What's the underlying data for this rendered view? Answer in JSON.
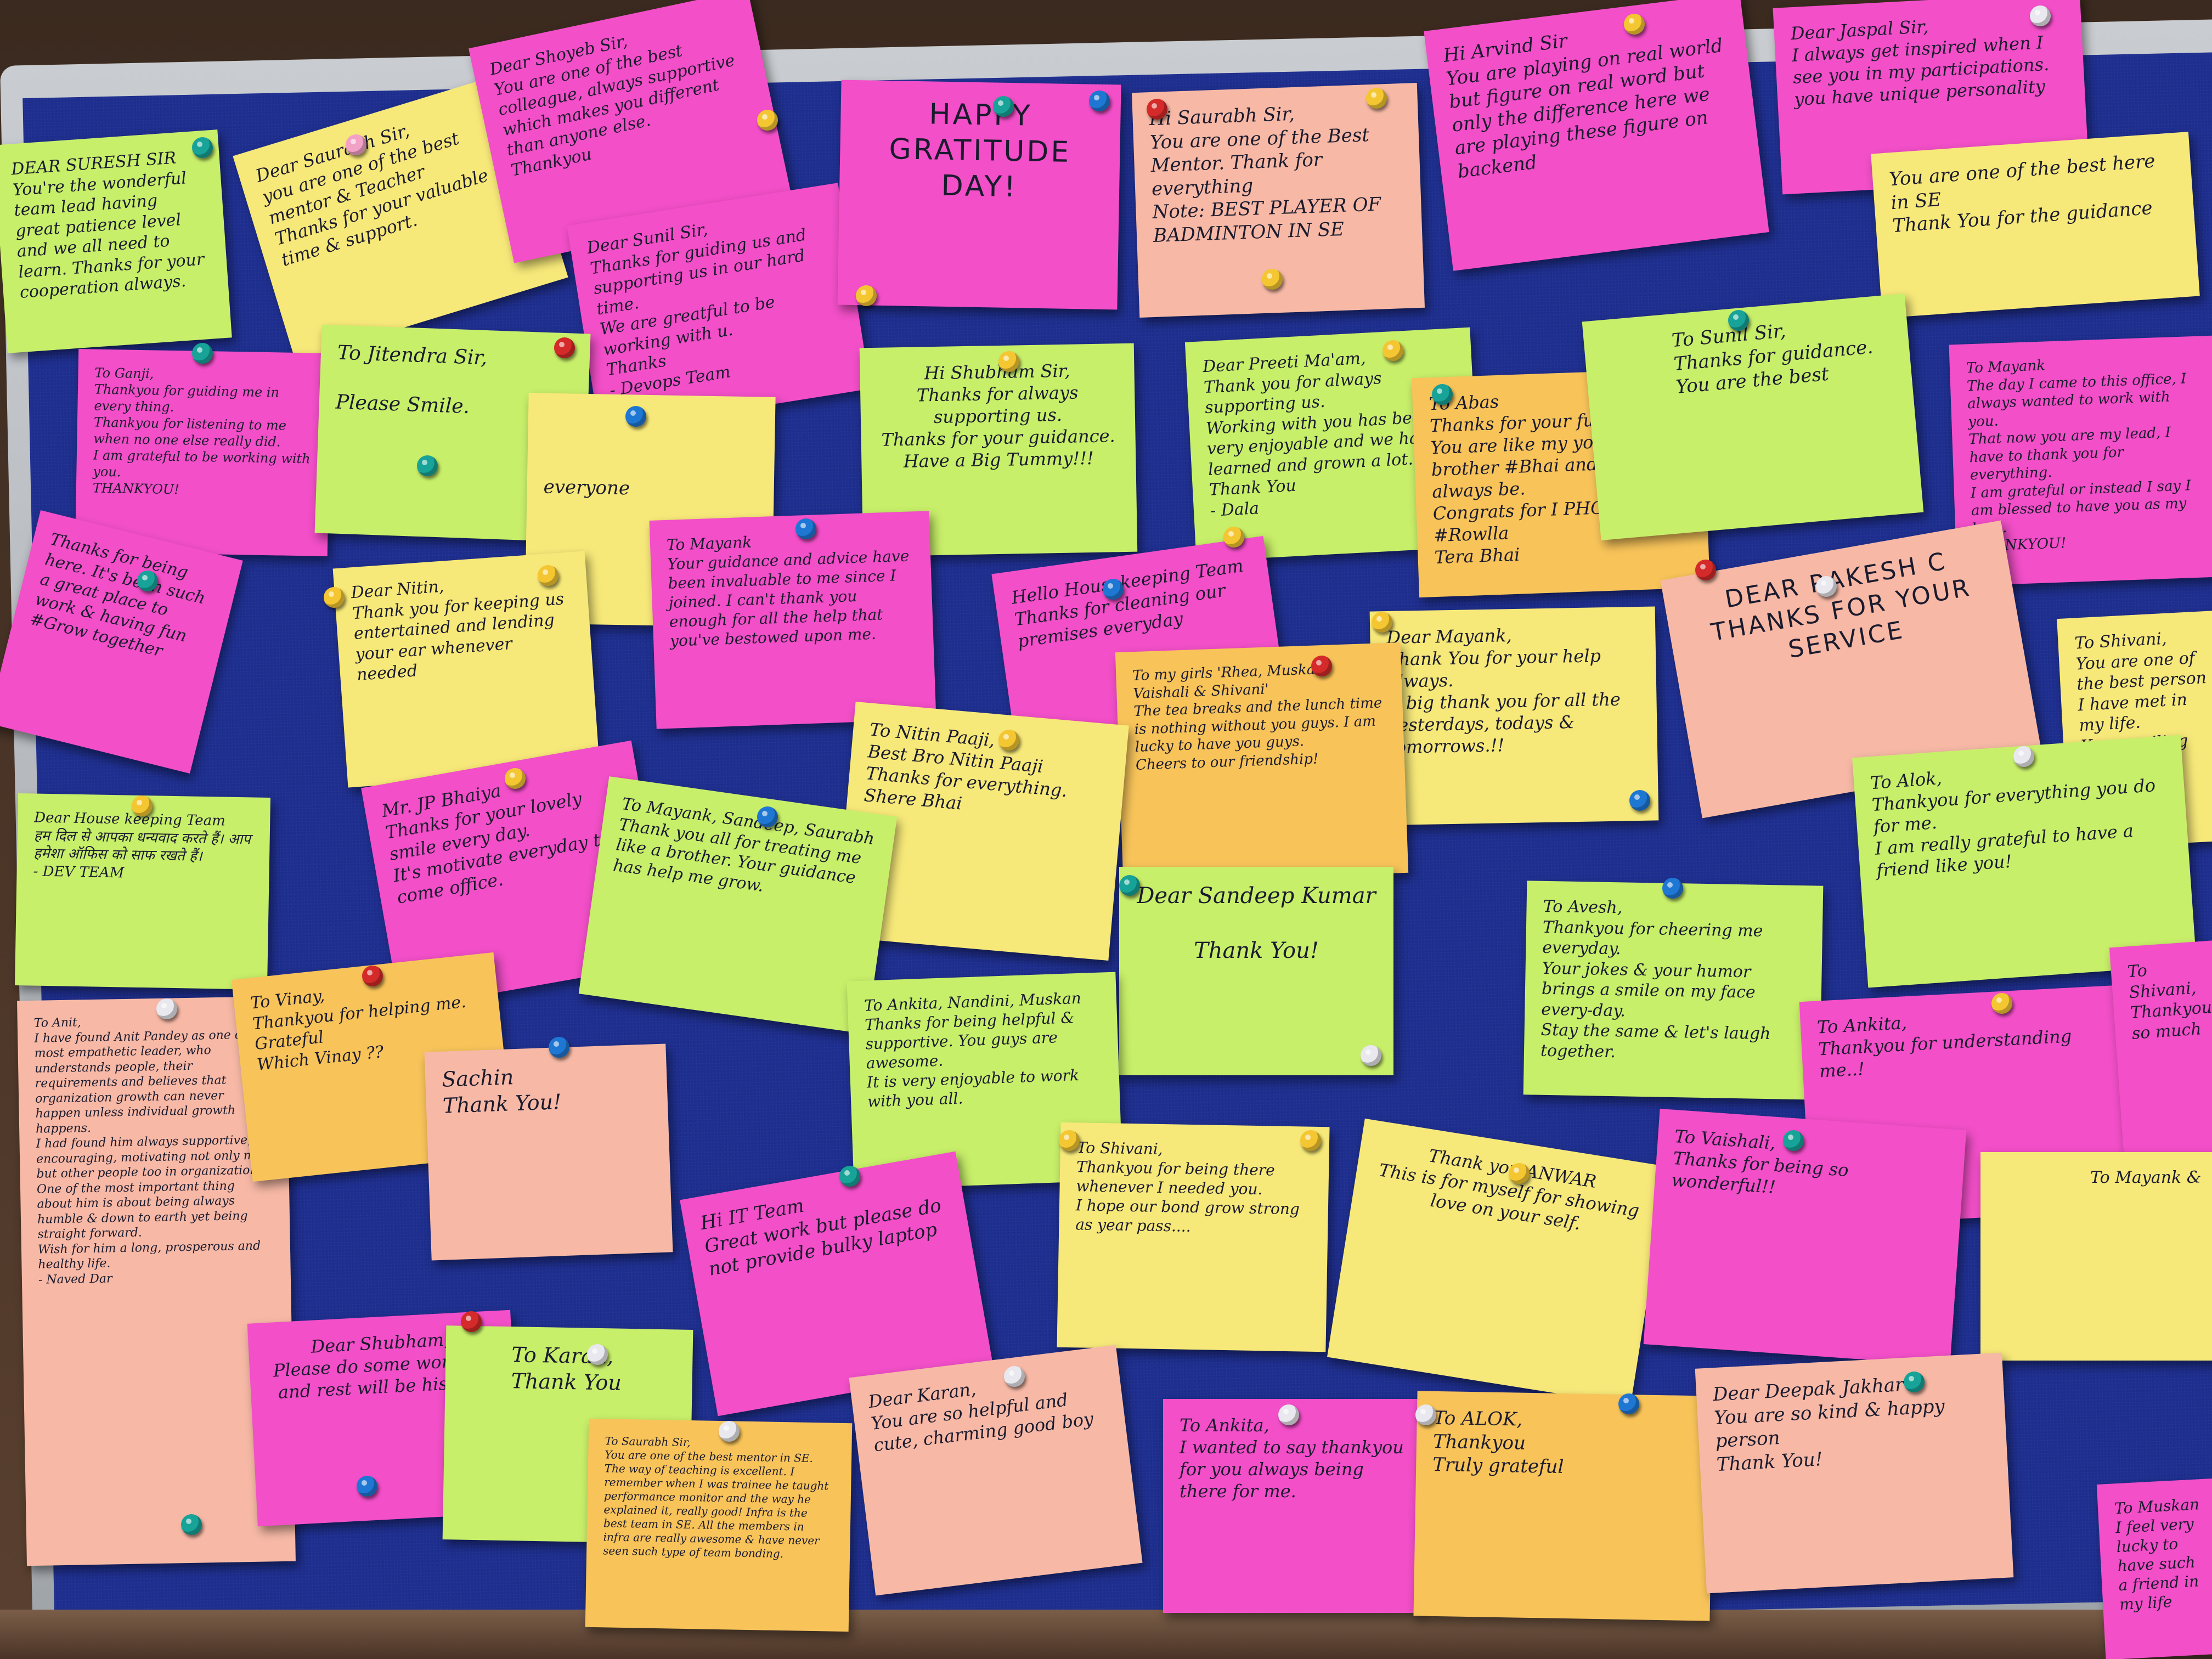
{
  "colors": {
    "pink": "#f24fc8",
    "green": "#c8ef6a",
    "yellow": "#f7e979",
    "orange": "#f8c45a",
    "salmon": "#f7b9a6",
    "board": "#1f2f8f"
  },
  "notes": [
    {
      "id": "n1",
      "text": "DEAR SURESH SIR\nYou're the wonderful team lead having great patience level and we all need to learn. Thanks for your cooperation always."
    },
    {
      "id": "n2",
      "text": "Dear Saurabh Sir,\nyou are one of the best mentor & Teacher\nThanks for your valuable time & support."
    },
    {
      "id": "n3",
      "text": "Dear Shoyeb Sir,\nYou are one of the best colleague, always supportive\nwhich makes you different than anyone else.\nThankyou"
    },
    {
      "id": "n4",
      "text": "Dear Sunil Sir,\nThanks for guiding us and supporting us in our hard time.\nWe are greatful to be working with u.\nThanks\n- Devops Team"
    },
    {
      "id": "n5",
      "text": "HAPPY\nGRATITUDE\nDAY!"
    },
    {
      "id": "n6",
      "text": "Hi Saurabh Sir,\nYou are one of the Best Mentor. Thank for everything\nNote: BEST PLAYER OF BADMINTON IN SE"
    },
    {
      "id": "n7",
      "text": "Hi Arvind Sir\nYou are playing on real world but figure on real word but only the difference here we are playing these figure on backend"
    },
    {
      "id": "n8",
      "text": "Dear Jaspal Sir,\nI always get inspired when I see you in my participations.\nyou have unique personality"
    },
    {
      "id": "n9",
      "text": "You are one of the best here in SE\nThank You for the guidance"
    },
    {
      "id": "n10",
      "text": "To Ganji,\nThankyou for guiding me in every thing.\nThankyou for listening to me when no one else really did.\nI am grateful to be working with you.\nTHANKYOU!"
    },
    {
      "id": "n11",
      "text": "To Jitendra Sir,\n\nPlease Smile."
    },
    {
      "id": "n12",
      "text": "everyone"
    },
    {
      "id": "n13",
      "text": "Hi Shubham Sir,\nThanks for always supporting us.\nThanks for your guidance.\nHave a Big Tummy!!!"
    },
    {
      "id": "n14",
      "text": "Dear Preeti Ma'am,\nThank you for always supporting us.\nWorking with you has been very enjoyable and we have learned and grown a lot.\nThank You\n- Dala"
    },
    {
      "id": "n15",
      "text": "To Abas\nThanks for your funny jokes. You are like my younger brother #Bhai and you'll always be.\nCongrats for I PHONE\n#Rowlla\nTera Bhai"
    },
    {
      "id": "n16",
      "text": "To Sunil Sir,\nThanks for guidance.\nYou are the best"
    },
    {
      "id": "n17",
      "text": "To Mayank\nThe day I came to this office, I always wanted to work with you.\nThat now you are my lead, I have to thank you for everything.\nI am grateful or instead I say I am blessed to have you as my lead.\nTHANKYOU!"
    },
    {
      "id": "n18",
      "text": "Thanks for being here. It's been such a great place to work & having fun #Grow together"
    },
    {
      "id": "n19",
      "text": "Dear Nitin,\nThank you for keeping us entertained and lending your ear whenever needed"
    },
    {
      "id": "n20",
      "text": "To Mayank\nYour guidance and advice have been invaluable to me since I joined. I can't thank you enough for all the help that you've bestowed upon me."
    },
    {
      "id": "n21",
      "text": "Hello Housekeeping Team\nThanks for cleaning our premises everyday"
    },
    {
      "id": "n22",
      "text": "Dear Mayank,\nThank You for your help always.\nA big thank you for all the yesterdays, todays & tomorrows.!!"
    },
    {
      "id": "n23",
      "text": "DEAR RAKESH C\nTHANKS FOR YOUR SERVICE"
    },
    {
      "id": "n24",
      "text": "To Shivani,\nYou are one of the best person I have met in my life.\nKeep smiling"
    },
    {
      "id": "n25",
      "text": "To my girls 'Rhea, Muskan, Vaishali & Shivani'\nThe tea breaks and the lunch time is nothing without you guys. I am lucky to have you guys.\nCheers to our friendship!"
    },
    {
      "id": "n26",
      "text": "To Nitin Paaji,\nBest Bro Nitin Paaji\nThanks for everything.\nShere Bhai"
    },
    {
      "id": "n27",
      "text": "Dear House keeping Team\nहम दिल से आपका धन्यवाद करते हैं। आप हमेशा ऑफिस को साफ रखते हैं।\n- DEV TEAM"
    },
    {
      "id": "n28",
      "text": "Mr. JP Bhaiya\nThanks for your lovely smile every day.\nIt's motivate everyday to come office."
    },
    {
      "id": "n29",
      "text": "To Mayank, Sandeep, Saurabh\nThank you all for treating me like a brother. Your guidance has help me grow."
    },
    {
      "id": "n30",
      "text": "To Alok,\nThankyou for everything you do for me.\nI am really grateful to have a friend like you!"
    },
    {
      "id": "n31",
      "text": "Dear Sandeep Kumar\n\nThank You!"
    },
    {
      "id": "n32",
      "text": "To Avesh,\nThankyou for cheering me everyday.\nYour jokes & your humor brings a smile on my face every-day.\nStay the same & let's laugh together."
    },
    {
      "id": "n33",
      "text": "To Anit,\nI have found Anit Pandey as one of the most empathetic leader, who understands people, their requirements and believes that organization growth can never happen unless individual growth happens.\nI had found him always supportive, encouraging, motivating not only me but other people too in organization.\nOne of the most important thing about him is about being always humble & down to earth yet being straight forward.\nWish for him a long, prosperous and healthy life.\n- Naved Dar"
    },
    {
      "id": "n34",
      "text": "To Vinay,\nThankyou for helping me. Grateful\nWhich Vinay ??"
    },
    {
      "id": "n35",
      "text": "Sachin\nThank You!"
    },
    {
      "id": "n36",
      "text": "To Ankita, Nandini, Muskan\nThanks for being helpful & supportive. You guys are awesome.\nIt is very enjoyable to work with you all."
    },
    {
      "id": "n37",
      "text": "To Ankita,\nThankyou for understanding me..!"
    },
    {
      "id": "n38",
      "text": "To Shivani,\nThankyou so much"
    },
    {
      "id": "n39",
      "text": "Hi IT Team\nGreat work but please do not provide bulky laptop"
    },
    {
      "id": "n40",
      "text": "To Shivani,\nThankyou for being there whenever I needed you.\nI hope our bond grow strong as year pass...."
    },
    {
      "id": "n41",
      "text": "Thank you ANWAR\nThis is for myself for showing love on your self."
    },
    {
      "id": "n42",
      "text": "To Vaishali,\nThanks for being so wonderful!!"
    },
    {
      "id": "n43",
      "text": "To Mayank &"
    },
    {
      "id": "n44",
      "text": "Dear Shubham,\nPlease do some workout and rest will be history."
    },
    {
      "id": "n45",
      "text": "To Karan,\nThank You"
    },
    {
      "id": "n46",
      "text": "To Saurabh Sir,\nYou are one of the best mentor in SE. The way of teaching is excellent. I remember when I was trainee he taught performance monitor and the way he explained it, really good! Infra is the best team in SE. All the members in infra are really awesome & have never seen such type of team bonding."
    },
    {
      "id": "n47",
      "text": "Dear Karan,\nYou are so helpful and cute, charming good boy"
    },
    {
      "id": "n48",
      "text": "To Ankita,\nI wanted to say thankyou for you always being there for me."
    },
    {
      "id": "n49",
      "text": "To ALOK,\nThankyou\nTruly grateful"
    },
    {
      "id": "n50",
      "text": "Dear Deepak Jakhar\nYou are so kind & happy person\nThank You!"
    },
    {
      "id": "n51",
      "text": "To Muskan\nI feel very lucky to have such a friend in my life"
    }
  ]
}
